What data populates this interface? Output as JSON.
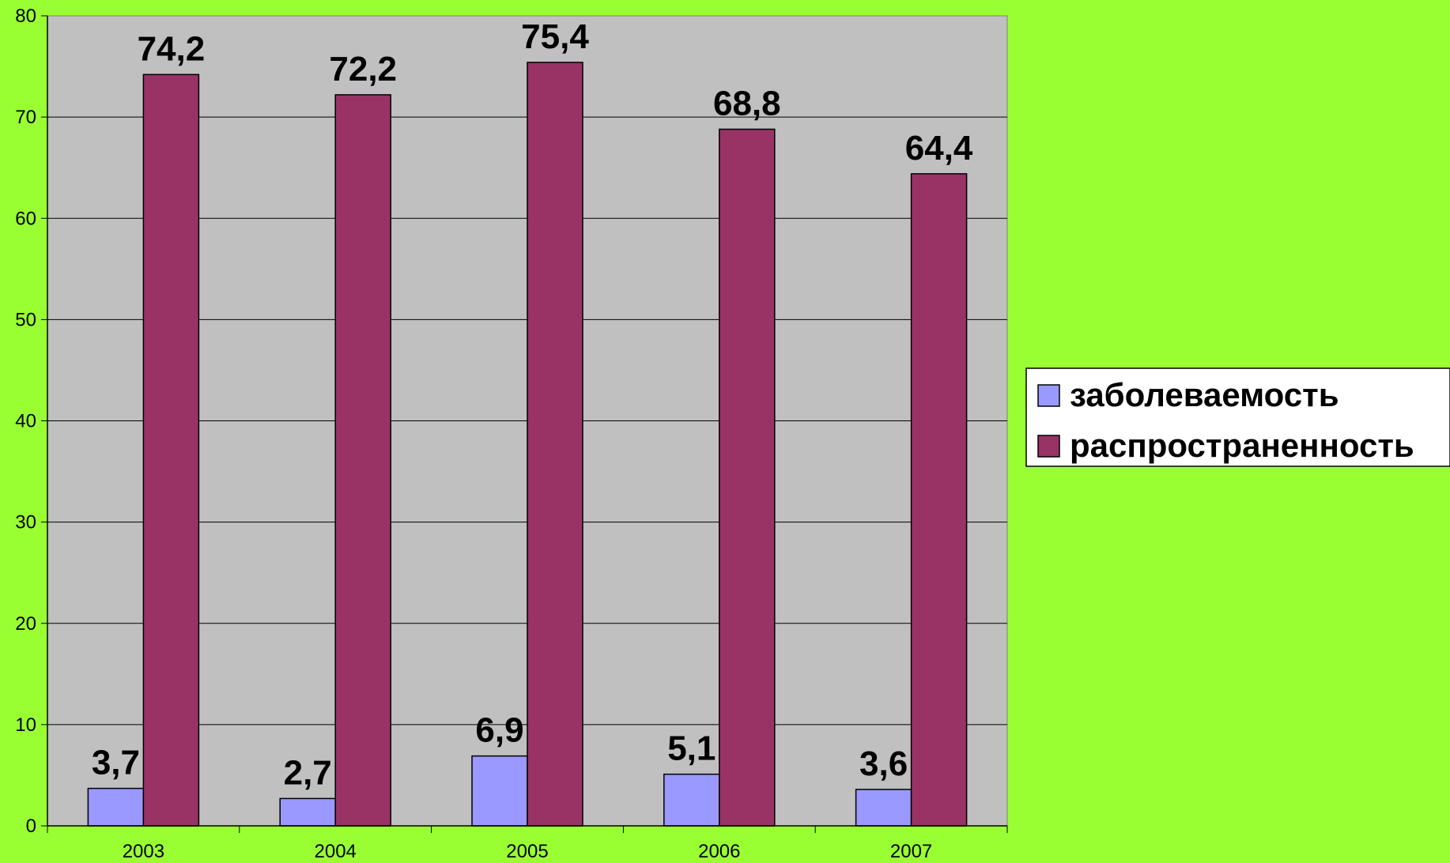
{
  "chart_data": {
    "type": "bar",
    "categories": [
      "2003",
      "2004",
      "2005",
      "2006",
      "2007"
    ],
    "series": [
      {
        "name": "заболеваемость",
        "values": [
          3.7,
          2.7,
          6.9,
          5.1,
          3.6
        ],
        "labels": [
          "3,7",
          "2,7",
          "6,9",
          "5,1",
          "3,6"
        ],
        "color": "#9999ff"
      },
      {
        "name": "распространенность",
        "values": [
          74.2,
          72.2,
          75.4,
          68.8,
          64.4
        ],
        "labels": [
          "74,2",
          "72,2",
          "75,4",
          "68,8",
          "64,4"
        ],
        "color": "#993366"
      }
    ],
    "ylim": [
      0,
      80
    ],
    "yticks": [
      "0",
      "10",
      "20",
      "30",
      "40",
      "50",
      "60",
      "70",
      "80"
    ],
    "grid": true,
    "legend": "right",
    "plot_background": "#c0c0c0",
    "page_background": "#99ff33"
  }
}
